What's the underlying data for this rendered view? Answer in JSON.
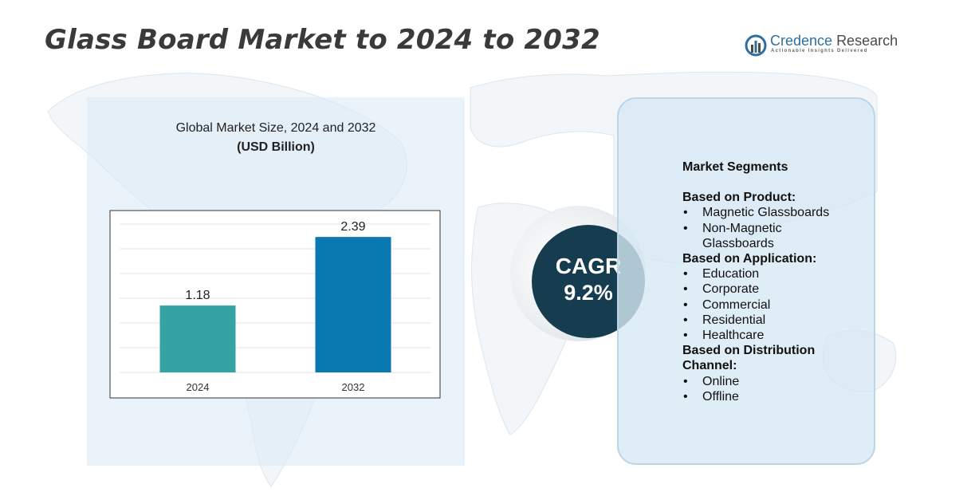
{
  "title": "Glass Board Market to 2024 to 2032",
  "logo": {
    "name_part1": "Credence",
    "name_part2": "Research",
    "tagline": "Actionable Insights Delivered"
  },
  "chart_data": {
    "type": "bar",
    "title": "Global Market Size,  2024 and 2032",
    "subtitle": "(USD Billion)",
    "categories": [
      "2024",
      "2032"
    ],
    "values": [
      1.18,
      2.39
    ],
    "value_labels": [
      "1.18",
      "2.39"
    ],
    "colors": [
      "#33a3a3",
      "#0a78b1"
    ],
    "ylim": [
      0,
      2.8
    ],
    "grid": true,
    "xlabel": "",
    "ylabel": ""
  },
  "cagr": {
    "label": "CAGR",
    "value": "9.2%"
  },
  "segments": {
    "title": "Market Segments",
    "groups": [
      {
        "heading": "Based on Product:",
        "items": [
          "Magnetic Glassboards",
          "Non-Magnetic Glassboards"
        ]
      },
      {
        "heading": "Based on Application:",
        "items": [
          "Education",
          "Corporate",
          "Commercial",
          "Residential",
          "Healthcare"
        ]
      },
      {
        "heading": "Based on Distribution Channel:",
        "items": [
          "Online",
          "Offline"
        ]
      }
    ]
  },
  "colors": {
    "title": "#3a3a3a",
    "cagr_circle": "#163c4f",
    "panel": "#dbeaf6",
    "brand": "#2f6f9f"
  }
}
